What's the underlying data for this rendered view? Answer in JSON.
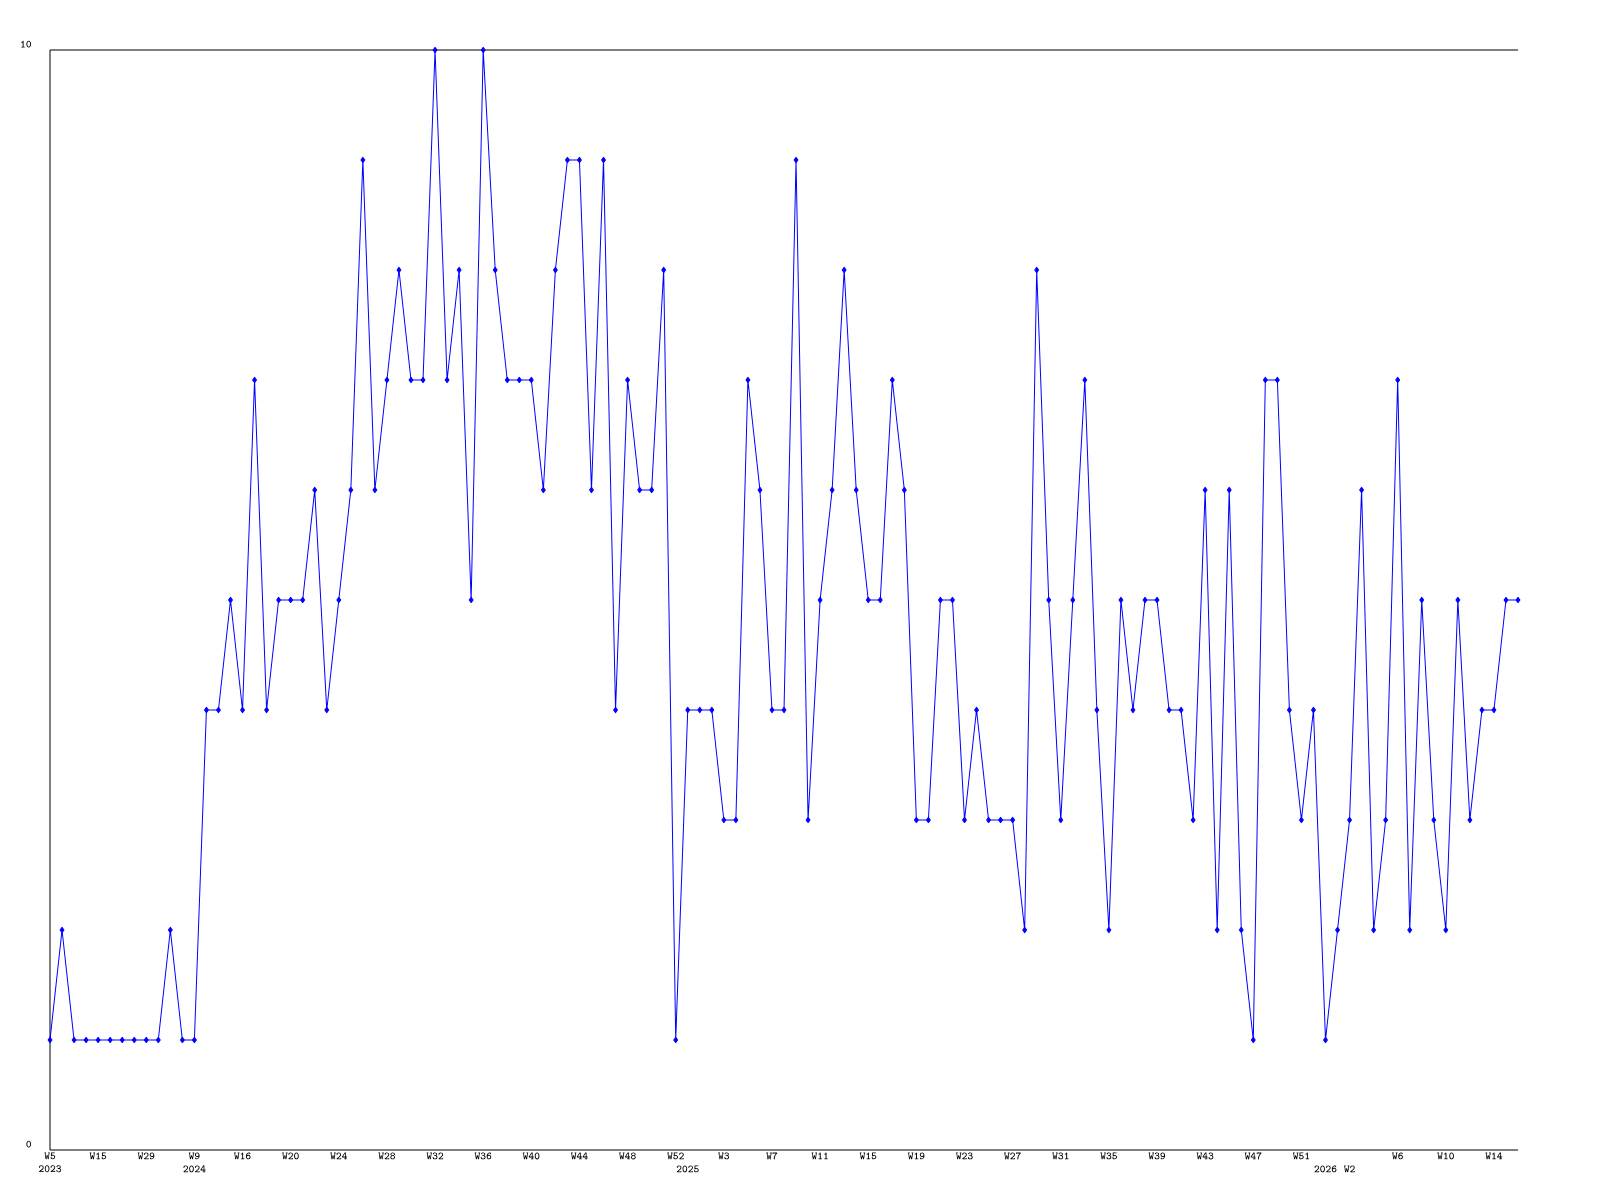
{
  "chart_data": {
    "type": "line",
    "categories": [
      "W5 2023",
      null,
      null,
      null,
      "W15",
      null,
      null,
      null,
      "W29",
      null,
      null,
      null,
      "W9 2024",
      null,
      null,
      null,
      "W16",
      null,
      null,
      null,
      "W20",
      null,
      null,
      null,
      "W24",
      null,
      null,
      null,
      "W28",
      null,
      null,
      null,
      "W32",
      null,
      null,
      null,
      "W36",
      null,
      null,
      null,
      "W40",
      null,
      null,
      null,
      "W44",
      null,
      null,
      null,
      "W48",
      null,
      null,
      null,
      "W52",
      "2025",
      null,
      null,
      "W3",
      null,
      null,
      null,
      "W7",
      null,
      null,
      null,
      "W11",
      null,
      null,
      null,
      "W15",
      null,
      null,
      null,
      "W19",
      null,
      null,
      null,
      "W23",
      null,
      null,
      null,
      "W27",
      null,
      null,
      null,
      "W31",
      null,
      null,
      null,
      "W35",
      null,
      null,
      null,
      "W39",
      null,
      null,
      null,
      "W43",
      null,
      null,
      null,
      "W47",
      null,
      null,
      null,
      "W51",
      null,
      "2026",
      null,
      "W2",
      null,
      null,
      null,
      "W6",
      null,
      null,
      null,
      "W10",
      null,
      null,
      null,
      "W14",
      null,
      null
    ],
    "values": [
      1,
      2,
      1,
      1,
      1,
      1,
      1,
      1,
      1,
      1,
      2,
      1,
      1,
      4,
      4,
      5,
      4,
      7,
      4,
      5,
      5,
      5,
      6,
      4,
      5,
      6,
      9,
      6,
      7,
      8,
      7,
      7,
      10,
      7,
      8,
      5,
      10,
      8,
      7,
      7,
      7,
      6,
      8,
      9,
      9,
      6,
      9,
      4,
      7,
      6,
      6,
      8,
      1,
      4,
      4,
      4,
      3,
      3,
      7,
      6,
      4,
      4,
      9,
      3,
      5,
      6,
      8,
      6,
      5,
      5,
      7,
      6,
      3,
      3,
      5,
      5,
      3,
      4,
      3,
      3,
      3,
      2,
      8,
      5,
      3,
      5,
      7,
      4,
      2,
      5,
      4,
      5,
      5,
      4,
      4,
      3,
      6,
      2,
      6,
      2,
      1,
      7,
      7,
      4,
      3,
      4,
      1,
      2,
      3,
      6,
      2,
      3,
      7,
      2,
      5,
      3,
      2,
      5,
      3,
      4,
      4,
      5,
      5
    ],
    "color": "#0000ff",
    "marker": "diamond",
    "line_style": "solid",
    "ylim": [
      0,
      10
    ],
    "yticks": [
      0,
      10
    ]
  }
}
